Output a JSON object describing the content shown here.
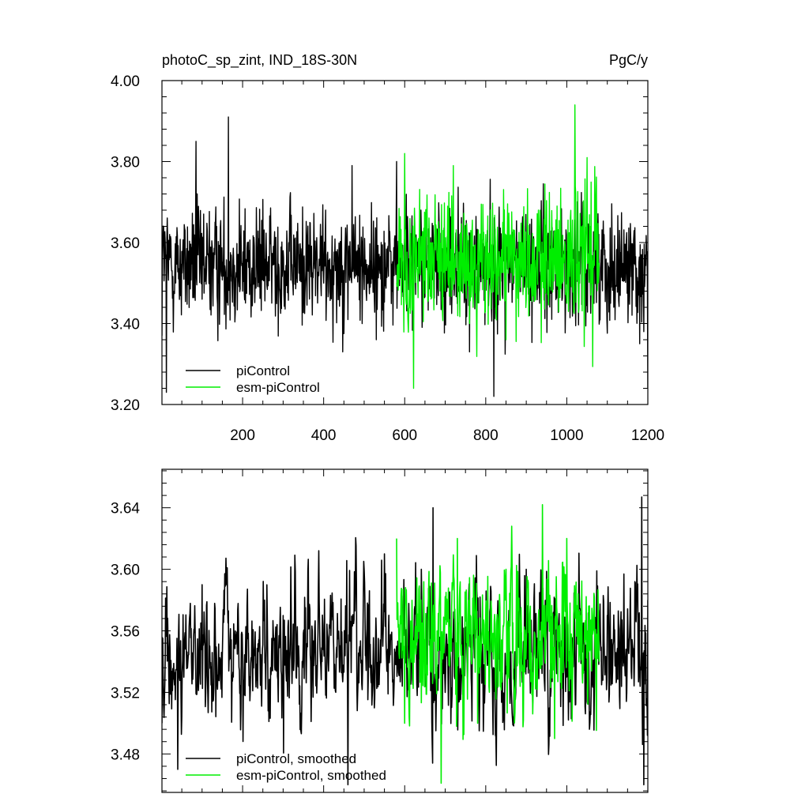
{
  "chart_data": [
    {
      "type": "line",
      "title": "photoC_sp_zint, IND_18S-30N",
      "units": "PgC/y",
      "xlabel": "",
      "ylabel": "",
      "xlim": [
        1,
        1200
      ],
      "ylim": [
        3.2,
        4.0
      ],
      "x_ticks": [
        200,
        400,
        600,
        800,
        1000,
        1200
      ],
      "x_tick_labels": [
        "200",
        "400",
        "600",
        "800",
        "1000",
        "1200"
      ],
      "y_ticks": [
        3.2,
        3.4,
        3.6,
        3.8,
        4.0
      ],
      "y_tick_labels": [
        "3.20",
        "3.40",
        "3.60",
        "3.80",
        "4.00"
      ],
      "legend_position": "bottom-left",
      "grid": false,
      "series": [
        {
          "name": "piControl",
          "color": "#000000",
          "x_range": [
            1,
            1200
          ],
          "mean": 3.545,
          "std": 0.072,
          "summary": "annual values fluctuate around 3.54; min about 3.22 near year 820, max about 3.91 near year 165",
          "points": [
            [
              1,
              3.37
            ],
            [
              5,
              3.64
            ],
            [
              12,
              3.23
            ],
            [
              20,
              3.62
            ],
            [
              60,
              3.52
            ],
            [
              85,
              3.85
            ],
            [
              100,
              3.46
            ],
            [
              165,
              3.91
            ],
            [
              200,
              3.48
            ],
            [
              300,
              3.58
            ],
            [
              400,
              3.5
            ],
            [
              470,
              3.79
            ],
            [
              530,
              3.36
            ],
            [
              580,
              3.8
            ],
            [
              640,
              3.68
            ],
            [
              700,
              3.55
            ],
            [
              760,
              3.33
            ],
            [
              820,
              3.22
            ],
            [
              900,
              3.56
            ],
            [
              980,
              3.47
            ],
            [
              1070,
              3.61
            ],
            [
              1130,
              3.63
            ],
            [
              1180,
              3.35
            ],
            [
              1200,
              3.24
            ]
          ]
        },
        {
          "name": "esm-piControl",
          "color": "#00ee00",
          "x_range": [
            580,
            1080
          ],
          "mean": 3.55,
          "std": 0.085,
          "summary": "annual values from year 580 to 1080 around 3.55; min about 3.24 near year 622, max about 3.94 near year 1020",
          "points": [
            [
              580,
              3.5
            ],
            [
              600,
              3.82
            ],
            [
              622,
              3.24
            ],
            [
              650,
              3.6
            ],
            [
              700,
              3.48
            ],
            [
              720,
              3.79
            ],
            [
              760,
              3.4
            ],
            [
              800,
              3.62
            ],
            [
              850,
              3.36
            ],
            [
              880,
              3.56
            ],
            [
              930,
              3.68
            ],
            [
              1000,
              3.45
            ],
            [
              1020,
              3.94
            ],
            [
              1050,
              3.81
            ],
            [
              1080,
              3.55
            ]
          ]
        }
      ]
    },
    {
      "type": "line",
      "title": "",
      "xlabel": "",
      "ylabel": "",
      "xlim": [
        1,
        1200
      ],
      "ylim": [
        3.455,
        3.665
      ],
      "y_ticks": [
        3.48,
        3.52,
        3.56,
        3.6,
        3.64
      ],
      "y_tick_labels": [
        "3.48",
        "3.52",
        "3.56",
        "3.60",
        "3.64"
      ],
      "legend_position": "bottom-left",
      "grid": false,
      "series": [
        {
          "name": "piControl, smoothed",
          "color": "#000000",
          "x_range": [
            1,
            1200
          ],
          "mean": 3.545,
          "std": 0.03,
          "summary": "smoothed series with slight upward drift from about 3.53 to 3.56; min about 3.46 near year 1190, max about 3.647 near year 1185",
          "points": [
            [
              1,
              3.5
            ],
            [
              40,
              3.47
            ],
            [
              100,
              3.59
            ],
            [
              200,
              3.54
            ],
            [
              300,
              3.57
            ],
            [
              400,
              3.55
            ],
            [
              460,
              3.46
            ],
            [
              550,
              3.61
            ],
            [
              580,
              3.55
            ],
            [
              670,
              3.64
            ],
            [
              700,
              3.52
            ],
            [
              800,
              3.55
            ],
            [
              900,
              3.6
            ],
            [
              1000,
              3.53
            ],
            [
              1100,
              3.57
            ],
            [
              1185,
              3.647
            ],
            [
              1190,
              3.46
            ],
            [
              1200,
              3.58
            ]
          ]
        },
        {
          "name": "esm-piControl, smoothed",
          "color": "#00ee00",
          "x_range": [
            580,
            1080
          ],
          "mean": 3.555,
          "std": 0.032,
          "summary": "smoothed series from year 580 to 1080; min about 3.46 near year 690, max about 3.642 near year 940",
          "points": [
            [
              580,
              3.62
            ],
            [
              600,
              3.5
            ],
            [
              640,
              3.58
            ],
            [
              690,
              3.461
            ],
            [
              730,
              3.62
            ],
            [
              780,
              3.5
            ],
            [
              850,
              3.6
            ],
            [
              900,
              3.55
            ],
            [
              940,
              3.642
            ],
            [
              970,
              3.49
            ],
            [
              1000,
              3.62
            ],
            [
              1050,
              3.56
            ],
            [
              1080,
              3.54
            ]
          ]
        }
      ]
    }
  ]
}
